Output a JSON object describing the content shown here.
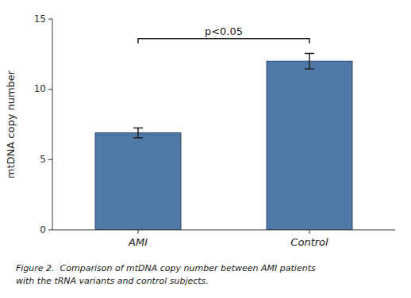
{
  "chart_data": {
    "type": "bar",
    "categories": [
      "AMI",
      "Control"
    ],
    "values": [
      6.9,
      12.0
    ],
    "errors": [
      0.35,
      0.55
    ],
    "ylabel": "mtDNA copy number",
    "ylim": [
      0,
      15
    ],
    "yticks": [
      0,
      5,
      10,
      15
    ],
    "annotations": [
      {
        "text": "p<0.05",
        "from": "AMI",
        "to": "Control",
        "y": 13.6
      }
    ],
    "caption": [
      "Figure 2.  Comparison of mtDNA copy number between AMI patients",
      "with the tRNA variants and control subjects."
    ]
  }
}
